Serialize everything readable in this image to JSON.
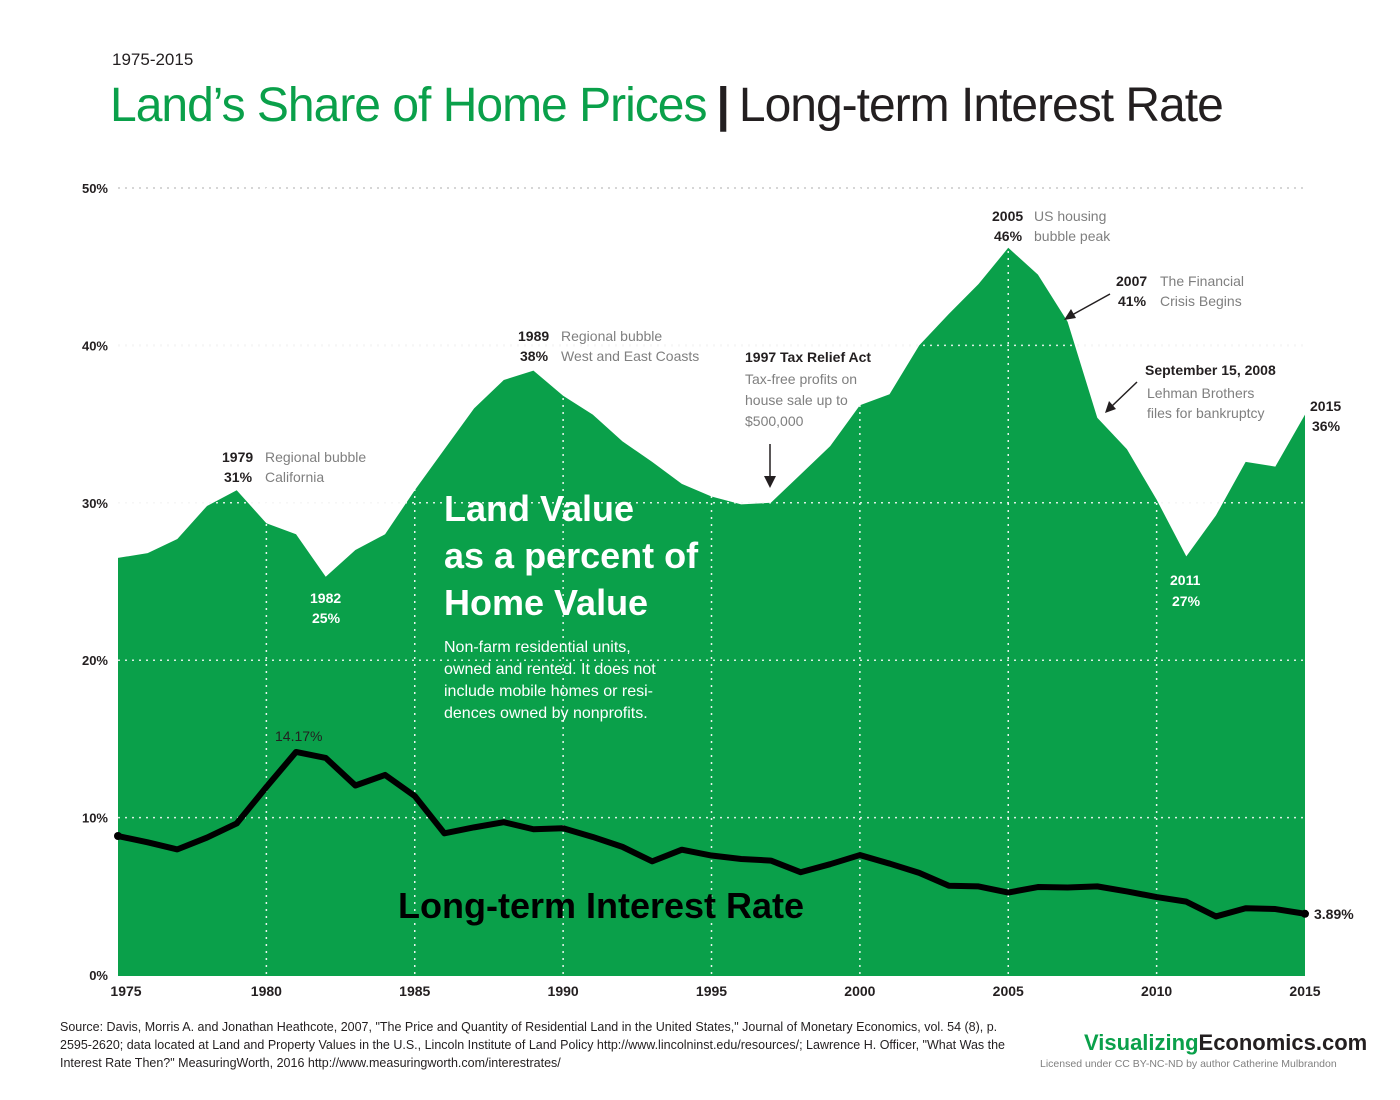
{
  "header": {
    "subtitle": "1975-2015",
    "title_land": "Land’s Share of Home Prices",
    "title_sep": "|",
    "title_rate": "Long-term Interest Rate"
  },
  "colors": {
    "land_fill": "#0aa04a",
    "rate_line": "#000000",
    "annotation_gray": "#7f7f7f"
  },
  "chart_data": {
    "type": "area",
    "x": [
      1975,
      1976,
      1977,
      1978,
      1979,
      1980,
      1981,
      1982,
      1983,
      1984,
      1985,
      1986,
      1987,
      1988,
      1989,
      1990,
      1991,
      1992,
      1993,
      1994,
      1995,
      1996,
      1997,
      1998,
      1999,
      2000,
      2001,
      2002,
      2003,
      2004,
      2005,
      2006,
      2007,
      2008,
      2009,
      2010,
      2011,
      2012,
      2013,
      2014,
      2015
    ],
    "xticks": [
      1975,
      1980,
      1985,
      1990,
      1995,
      2000,
      2005,
      2010,
      2015
    ],
    "yticks": [
      0,
      10,
      20,
      30,
      40,
      50
    ],
    "ytick_labels": [
      "0%",
      "10%",
      "20%",
      "30%",
      "40%",
      "50%"
    ],
    "ylim": [
      0,
      50
    ],
    "series": [
      {
        "values": [
          26.5,
          26.8,
          27.7,
          29.8,
          30.8,
          28.7,
          28.0,
          25.3,
          27.0,
          28.0,
          30.8,
          33.4,
          36.0,
          37.8,
          38.4,
          36.8,
          35.6,
          33.9,
          32.6,
          31.2,
          30.4,
          29.9,
          30.0,
          31.8,
          33.6,
          36.2,
          36.9,
          40.0,
          42.0,
          43.9,
          46.2,
          44.5,
          41.5,
          35.4,
          33.4,
          30.2,
          26.6,
          29.2,
          32.6,
          32.3,
          35.6
        ]
      },
      {
        "values": [
          8.83,
          8.43,
          7.98,
          8.73,
          9.63,
          11.94,
          14.17,
          13.79,
          12.04,
          12.71,
          11.37,
          9.0,
          9.38,
          9.71,
          9.26,
          9.32,
          8.77,
          8.14,
          7.22,
          7.96,
          7.59,
          7.37,
          7.27,
          6.53,
          7.04,
          7.62,
          7.08,
          6.49,
          5.67,
          5.63,
          5.24,
          5.59,
          5.56,
          5.63,
          5.31,
          4.95,
          4.66,
          3.72,
          4.24,
          4.19,
          3.89
        ]
      }
    ],
    "area_label": {
      "line1": "Land Value",
      "line2": "as a percent of",
      "line3": "Home Value",
      "note1": "Non-farm residential units,",
      "note2": "owned and rented.  It does not",
      "note3": "include mobile homes or resi-",
      "note4": "dences owned by nonprofits."
    },
    "line_label": "Long-term Interest Rate",
    "rate_peak_label": "14.17%",
    "rate_end_label": "3.89%",
    "annotations": {
      "a1979": {
        "year": "1979",
        "pct": "31%",
        "d1": "Regional bubble",
        "d2": "California"
      },
      "a1982": {
        "year": "1982",
        "pct": "25%"
      },
      "a1989": {
        "year": "1989",
        "pct": "38%",
        "d1": "Regional bubble",
        "d2": "West and East Coasts"
      },
      "a1997": {
        "head": "1997 Tax Relief Act",
        "d1": "Tax-free profits on",
        "d2": "house sale up to",
        "d3": "$500,000"
      },
      "a2005": {
        "year": "2005",
        "pct": "46%",
        "d1": "US housing",
        "d2": "bubble peak"
      },
      "a2007": {
        "year": "2007",
        "pct": "41%",
        "d1": "The Financial",
        "d2": "Crisis Begins"
      },
      "a2008": {
        "head": "September 15, 2008",
        "d1": "Lehman Brothers",
        "d2": "files for bankruptcy"
      },
      "a2011": {
        "year": "2011",
        "pct": "27%"
      },
      "a2015": {
        "year": "2015",
        "pct": "36%"
      }
    }
  },
  "footer": {
    "source": "Source:  Davis, Morris A. and Jonathan Heathcote, 2007, \"The Price and Quantity of Residential Land in the United States,\" Journal of Monetary Economics, vol. 54 (8), p. 2595-2620; data located at Land and Property Values in the U.S., Lincoln Institute of Land Policy http://www.lincolninst.edu/resources/; Lawrence H. Officer, \"What Was the Interest Rate Then?\" MeasuringWorth, 2016 http://www.measuringworth.com/interestrates/",
    "brand_green": "Visualizing",
    "brand_dark": "Economics.com",
    "license": "Licensed under CC BY-NC-ND by author Catherine Mulbrandon"
  }
}
